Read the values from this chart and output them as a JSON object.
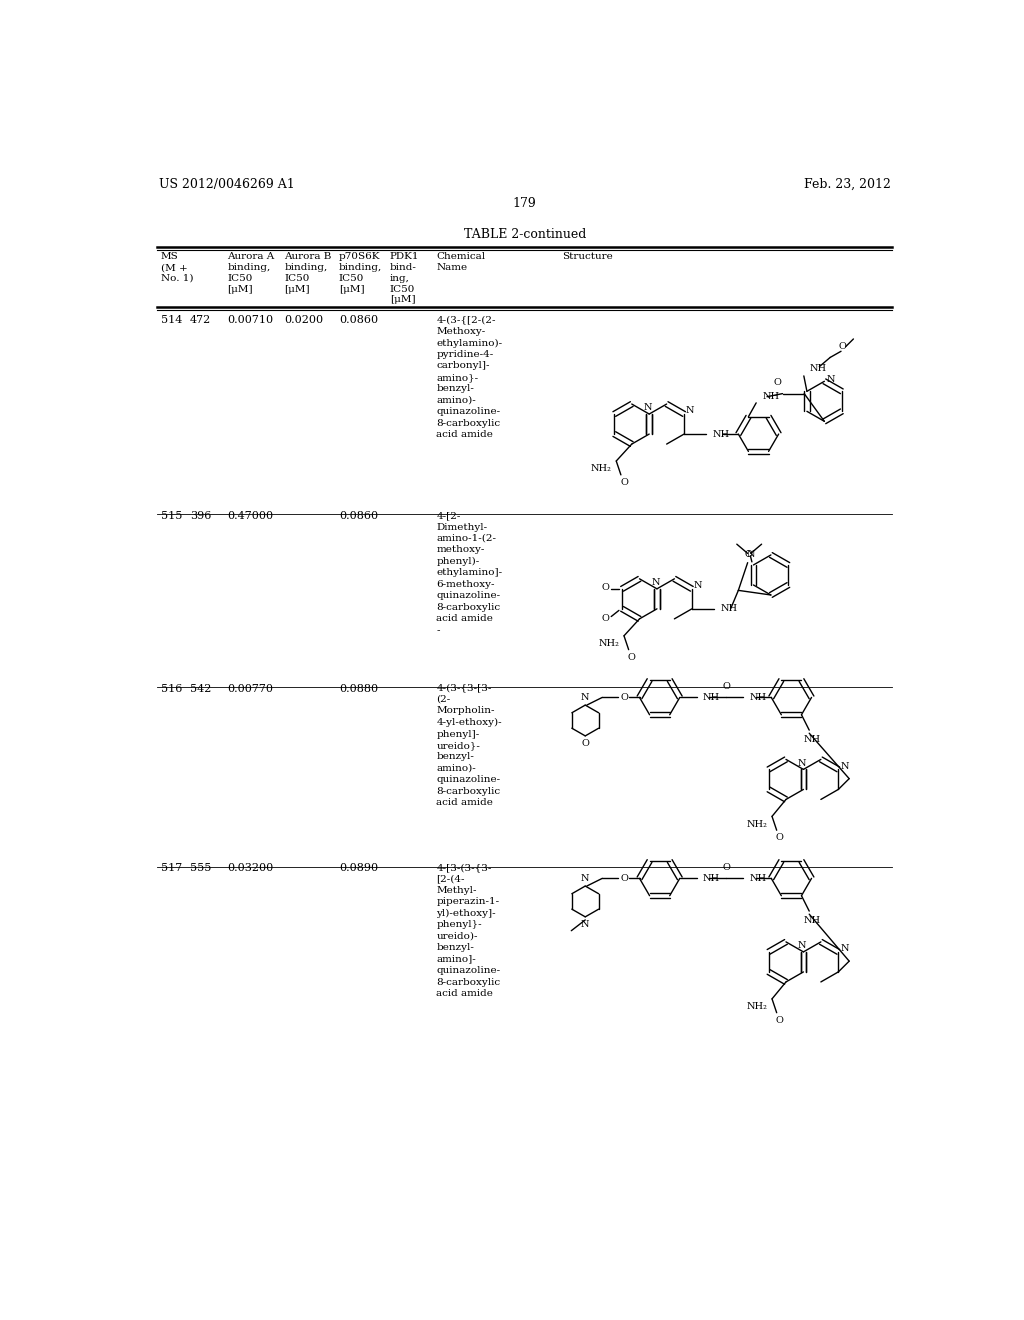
{
  "page_header_left": "US 2012/0046269 A1",
  "page_header_right": "Feb. 23, 2012",
  "page_number": "179",
  "table_title": "TABLE 2-continued",
  "background_color": "#ffffff",
  "text_color": "#000000",
  "rows": [
    {
      "no": "514",
      "ms": "472",
      "aurora_a": "0.00710",
      "aurora_b": "0.0200",
      "p70s6k": "0.0860",
      "pdk1": "",
      "chem_name": "4-(3-{[2-(2-\nMethoxy-\nethylamino)-\npyridine-4-\ncarbonyl]-\namino}-\nbenzyl-\namino)-\nquinazoline-\n8-carboxylic\nacid amide"
    },
    {
      "no": "515",
      "ms": "396",
      "aurora_a": "0.47000",
      "aurora_b": "",
      "p70s6k": "0.0860",
      "pdk1": "",
      "chem_name": "4-[2-\nDimethyl-\namino-1-(2-\nmethoxy-\nphenyl)-\nethylamino]-\n6-methoxy-\nquinazoline-\n8-carboxylic\nacid amide\n-"
    },
    {
      "no": "516",
      "ms": "542",
      "aurora_a": "0.00770",
      "aurora_b": "",
      "p70s6k": "0.0880",
      "pdk1": "",
      "chem_name": "4-(3-{3-[3-\n(2-\nMorpholin-\n4-yl-ethoxy)-\nphenyl]-\nureido}-\nbenzyl-\namino)-\nquinazoline-\n8-carboxylic\nacid amide"
    },
    {
      "no": "517",
      "ms": "555",
      "aurora_a": "0.03200",
      "aurora_b": "",
      "p70s6k": "0.0890",
      "pdk1": "",
      "chem_name": "4-[3-(3-{3-\n[2-(4-\nMethyl-\npiperazin-1-\nyl)-ethoxy]-\nphenyl}-\nureido)-\nbenzyl-\namino]-\nquinazoline-\n8-carboxylic\nacid amide"
    }
  ]
}
